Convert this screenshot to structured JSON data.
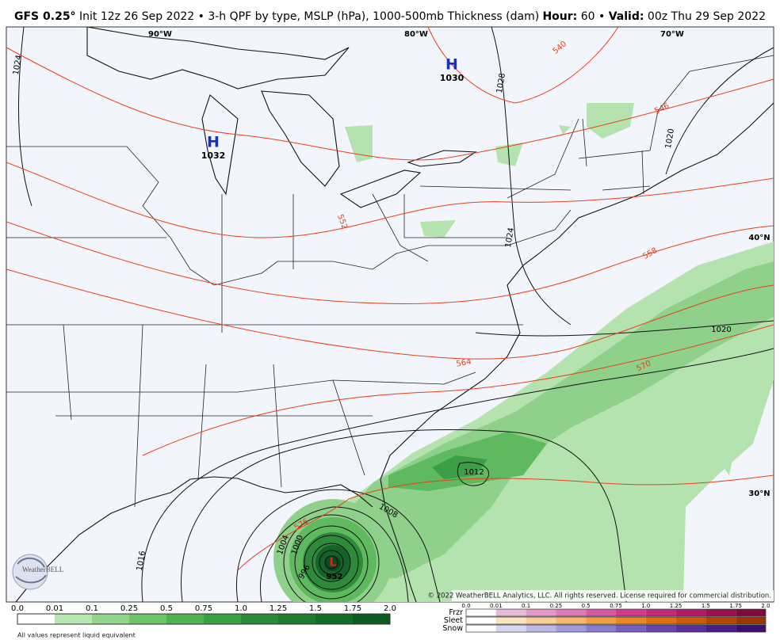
{
  "header": {
    "model": "GFS 0.25°",
    "description": "Init 12z 26 Sep 2022 • 3-h QPF by type, MSLP (hPa), 1000-500mb Thickness (dam)",
    "hour_label": "Hour:",
    "hour": "60",
    "separator": "•",
    "valid_label": "Valid:",
    "valid": "00z Thu 29 Sep 2022"
  },
  "map": {
    "longitudes": [
      "90°W",
      "80°W",
      "70°W"
    ],
    "latitudes": [
      "40°N",
      "30°N"
    ],
    "highs": [
      {
        "symbol": "H",
        "pressure": "1032"
      },
      {
        "symbol": "H",
        "pressure": "1030"
      }
    ],
    "low": {
      "symbol": "L",
      "pressure": "952"
    },
    "isobar_labels": [
      "1024",
      "1028",
      "1020",
      "1024",
      "1020",
      "1012",
      "1008",
      "1016",
      "1004",
      "1000",
      "996"
    ],
    "thickness_labels": [
      "540",
      "546",
      "552",
      "558",
      "564",
      "570",
      "576"
    ],
    "logo": "WeatherBELL",
    "copyright": "© 2022 WeatherBELL Analytics, LLC. All rights reserved. License required for commercial distribution."
  },
  "legend": {
    "rain_scale": [
      "0.0",
      "0.01",
      "0.1",
      "0.25",
      "0.5",
      "0.75",
      "1.0",
      "1.25",
      "1.5",
      "1.75",
      "2.0"
    ],
    "note": "All values represent liquid equivalent",
    "ptype_rows": [
      "Frzr",
      "Sleet",
      "Snow"
    ],
    "ptype_scale": [
      "0.0",
      "0.01",
      "0.1",
      "0.25",
      "0.5",
      "0.75",
      "1.0",
      "1.25",
      "1.5",
      "1.75",
      "2.0"
    ]
  }
}
